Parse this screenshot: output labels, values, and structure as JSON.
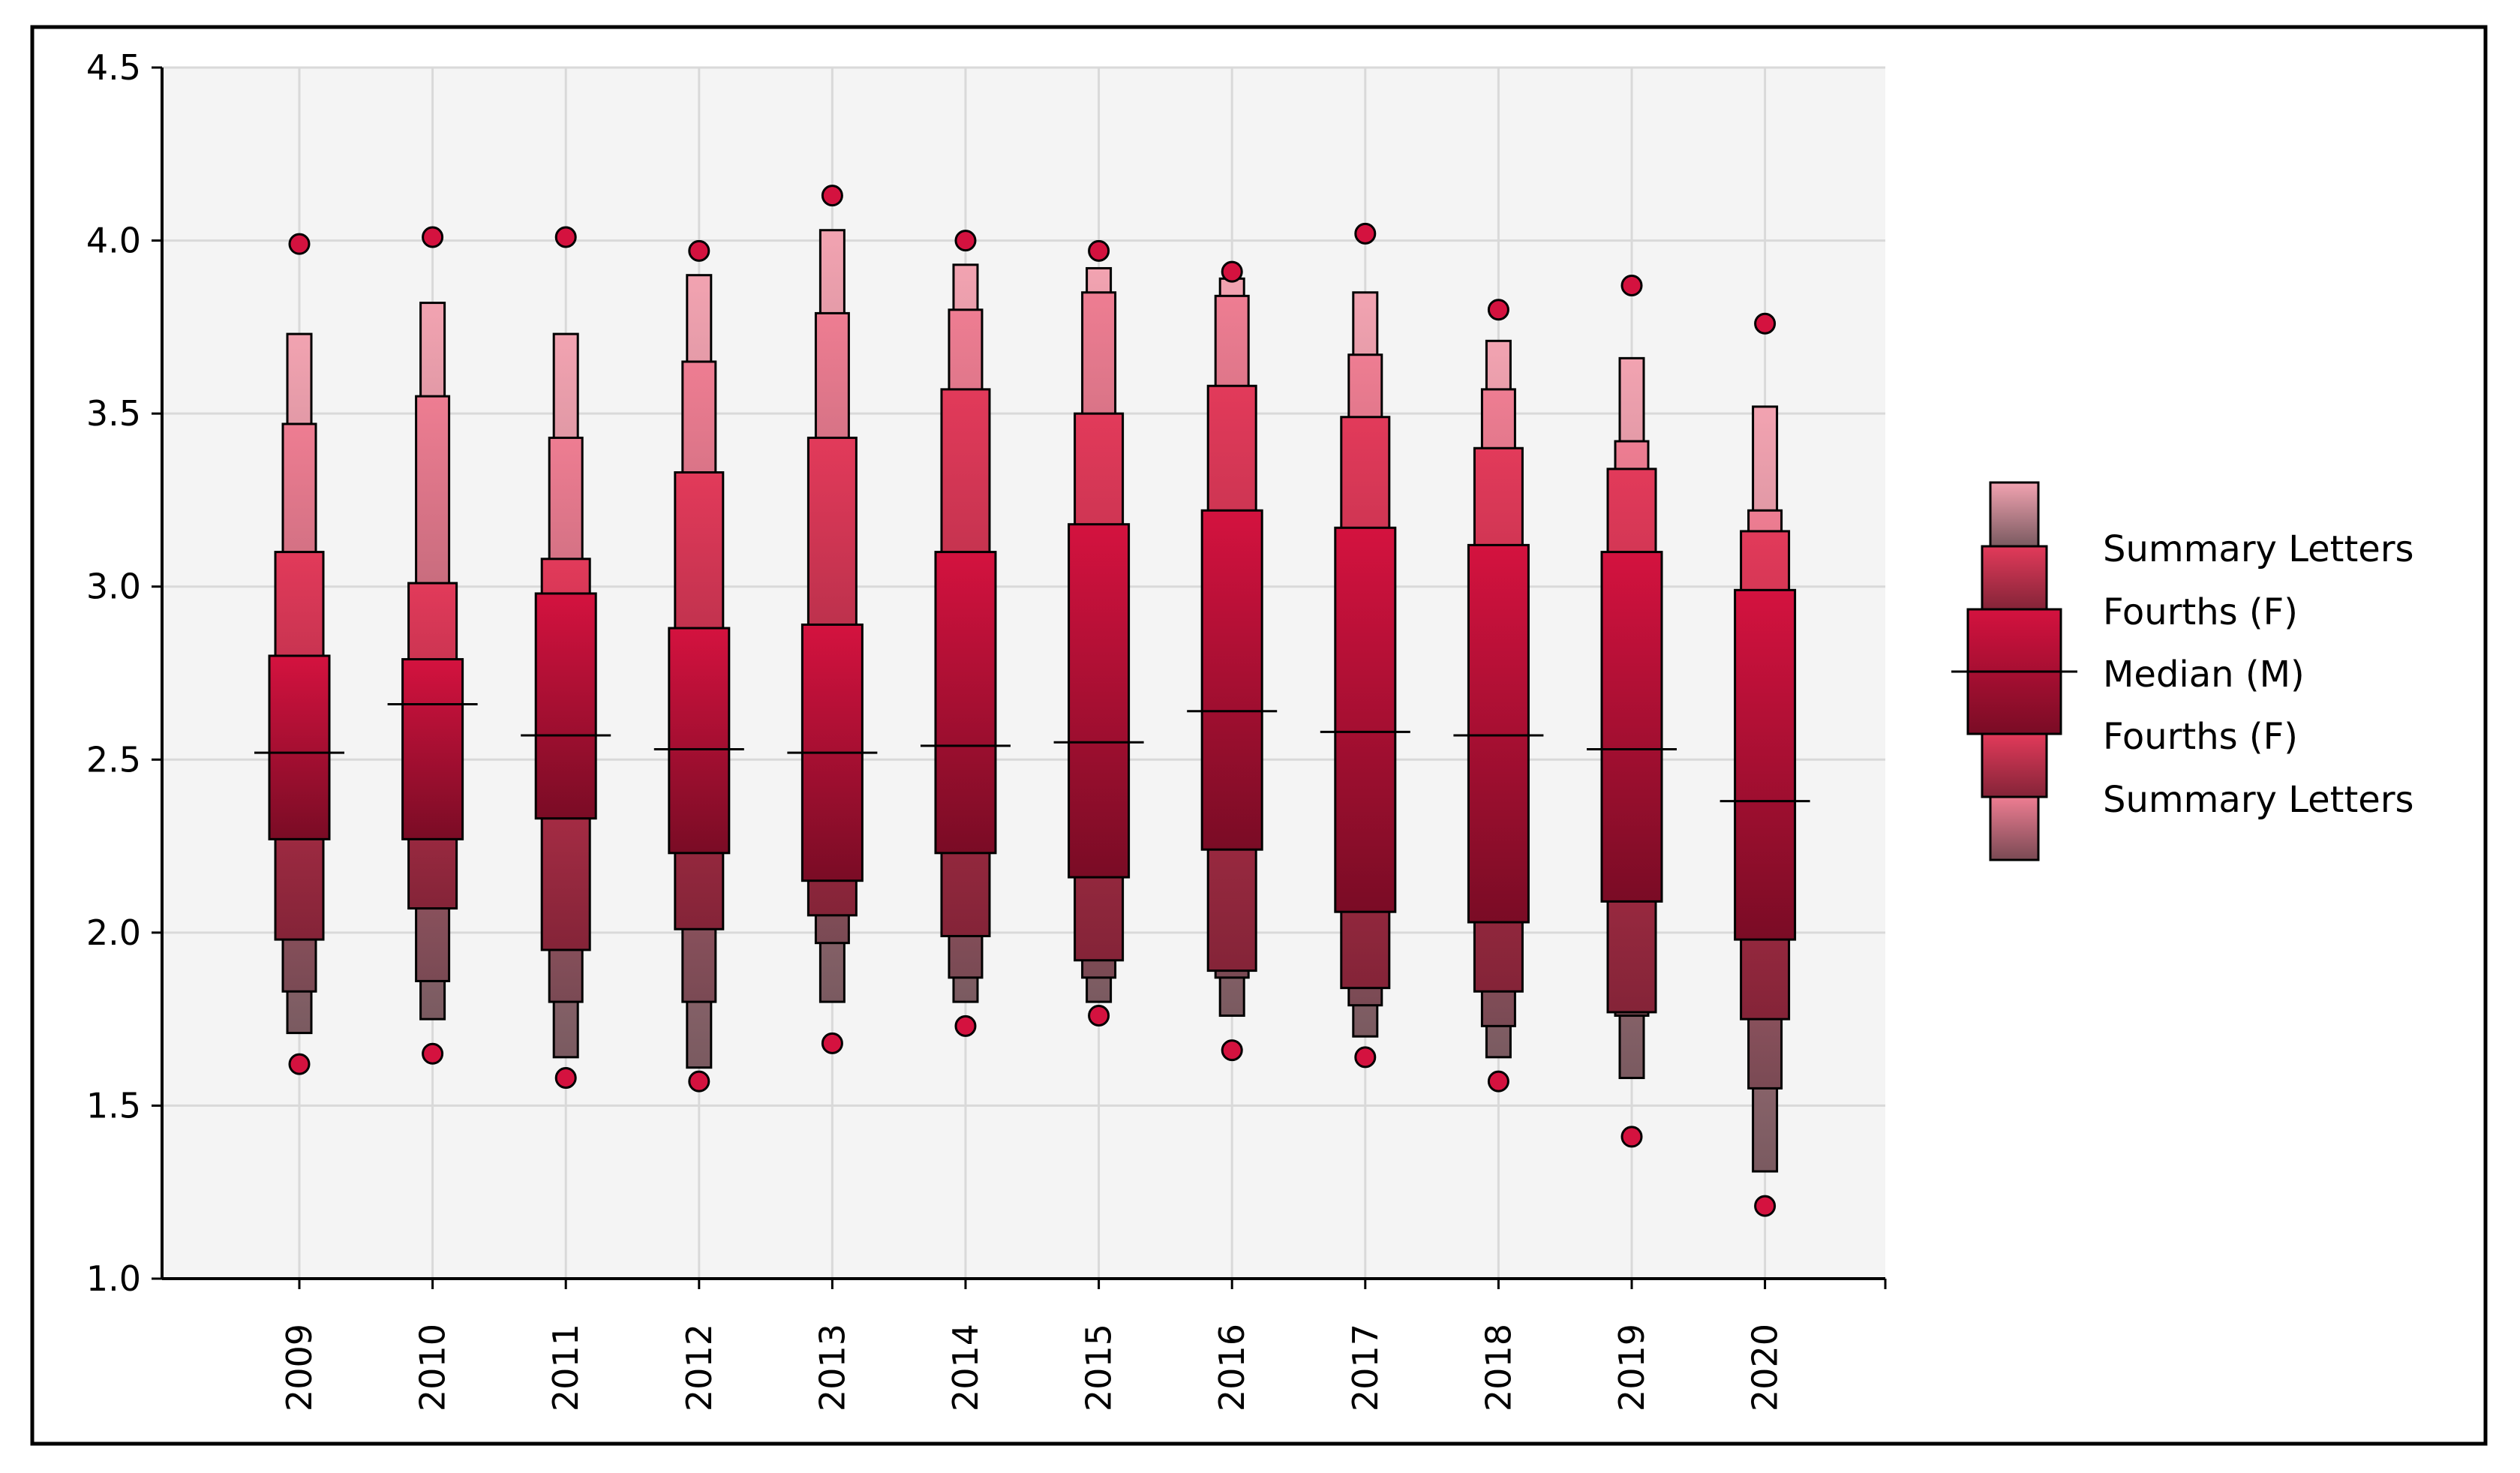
{
  "chart_data": {
    "type": "letter-value boxplot",
    "title": "",
    "xlabel": "",
    "ylabel": "",
    "ylim": [
      1.0,
      4.5
    ],
    "yticks": [
      "1.0",
      "1.5",
      "2.0",
      "2.5",
      "3.0",
      "3.5",
      "4.0",
      "4.5"
    ],
    "grid": true,
    "legend_position": "right",
    "legend": [
      "Summary Letters",
      "Fourths (F)",
      "Median (M)",
      "Fourths (F)",
      "Summary Letters"
    ],
    "colors": {
      "level1": "#d4123f",
      "level2": "#e23a5a",
      "level3": "#ee7d92",
      "level1_dark": "#7a0c25",
      "level2_dark": "#842438",
      "level3_dark": "#7a4a54",
      "outlier": "#d4123f",
      "plot_background": "#f4f4f4"
    },
    "series": [
      {
        "name": "2009",
        "median": 2.52,
        "boxes": [
          [
            2.27,
            2.8
          ],
          [
            1.98,
            3.1
          ],
          [
            1.83,
            3.47
          ],
          [
            1.71,
            3.73
          ]
        ],
        "outliers": [
          1.62,
          3.99
        ]
      },
      {
        "name": "2010",
        "median": 2.66,
        "boxes": [
          [
            2.27,
            2.79
          ],
          [
            2.07,
            3.01
          ],
          [
            1.86,
            3.55
          ],
          [
            1.75,
            3.82
          ]
        ],
        "outliers": [
          1.65,
          4.01
        ]
      },
      {
        "name": "2011",
        "median": 2.57,
        "boxes": [
          [
            2.33,
            2.98
          ],
          [
            1.95,
            3.08
          ],
          [
            1.8,
            3.43
          ],
          [
            1.64,
            3.73
          ]
        ],
        "outliers": [
          1.58,
          4.01
        ]
      },
      {
        "name": "2012",
        "median": 2.53,
        "boxes": [
          [
            2.23,
            2.88
          ],
          [
            2.01,
            3.33
          ],
          [
            1.8,
            3.65
          ],
          [
            1.61,
            3.9
          ]
        ],
        "outliers": [
          1.57,
          3.97
        ]
      },
      {
        "name": "2013",
        "median": 2.52,
        "boxes": [
          [
            2.15,
            2.89
          ],
          [
            2.05,
            3.43
          ],
          [
            1.97,
            3.79
          ],
          [
            1.8,
            4.03
          ]
        ],
        "outliers": [
          1.68,
          4.13
        ]
      },
      {
        "name": "2014",
        "median": 2.54,
        "boxes": [
          [
            2.23,
            3.1
          ],
          [
            1.99,
            3.57
          ],
          [
            1.87,
            3.8
          ],
          [
            1.8,
            3.93
          ]
        ],
        "outliers": [
          1.73,
          4.0
        ]
      },
      {
        "name": "2015",
        "median": 2.55,
        "boxes": [
          [
            2.16,
            3.18
          ],
          [
            1.92,
            3.5
          ],
          [
            1.87,
            3.85
          ],
          [
            1.8,
            3.92
          ]
        ],
        "outliers": [
          1.76,
          3.97
        ]
      },
      {
        "name": "2016",
        "median": 2.64,
        "boxes": [
          [
            2.24,
            3.22
          ],
          [
            1.89,
            3.58
          ],
          [
            1.87,
            3.84
          ],
          [
            1.76,
            3.89
          ]
        ],
        "outliers": [
          1.66,
          3.91
        ]
      },
      {
        "name": "2017",
        "median": 2.58,
        "boxes": [
          [
            2.06,
            3.17
          ],
          [
            1.84,
            3.49
          ],
          [
            1.79,
            3.67
          ],
          [
            1.7,
            3.85
          ]
        ],
        "outliers": [
          1.64,
          4.02
        ]
      },
      {
        "name": "2018",
        "median": 2.57,
        "boxes": [
          [
            2.03,
            3.12
          ],
          [
            1.83,
            3.4
          ],
          [
            1.73,
            3.57
          ],
          [
            1.64,
            3.71
          ]
        ],
        "outliers": [
          1.57,
          3.8
        ]
      },
      {
        "name": "2019",
        "median": 2.53,
        "boxes": [
          [
            2.09,
            3.1
          ],
          [
            1.77,
            3.34
          ],
          [
            1.76,
            3.42
          ],
          [
            1.58,
            3.66
          ]
        ],
        "outliers": [
          1.41,
          3.87
        ]
      },
      {
        "name": "2020",
        "median": 2.38,
        "boxes": [
          [
            1.98,
            2.99
          ],
          [
            1.75,
            3.16
          ],
          [
            1.55,
            3.22
          ],
          [
            1.31,
            3.52
          ]
        ],
        "outliers": [
          1.21,
          3.76
        ]
      }
    ]
  }
}
